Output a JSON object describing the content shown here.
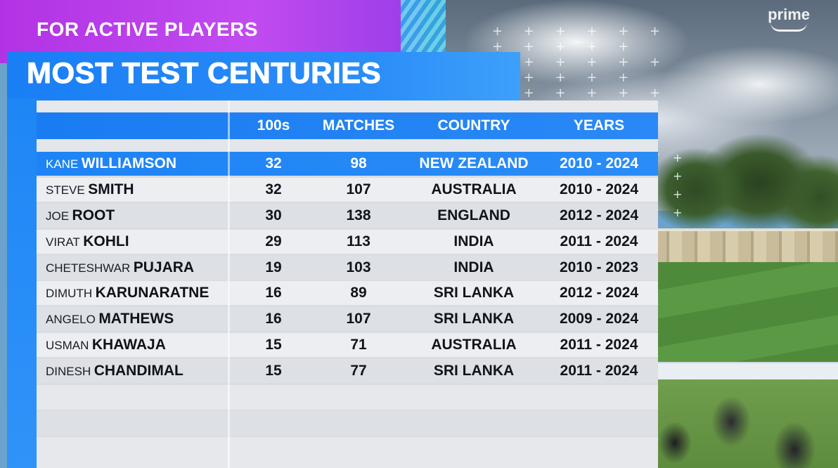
{
  "broadcaster": "prime",
  "pretitle": "FOR ACTIVE PLAYERS",
  "title": "MOST TEST CENTURIES",
  "headers": {
    "hundreds": "100s",
    "matches": "MATCHES",
    "country": "COUNTRY",
    "years": "YEARS"
  },
  "rows": [
    {
      "first": "KANE",
      "last": "WILLIAMSON",
      "hundreds": "32",
      "matches": "98",
      "country": "NEW ZEALAND",
      "years": "2010 - 2024"
    },
    {
      "first": "STEVE",
      "last": "SMITH",
      "hundreds": "32",
      "matches": "107",
      "country": "AUSTRALIA",
      "years": "2010 - 2024"
    },
    {
      "first": "JOE",
      "last": "ROOT",
      "hundreds": "30",
      "matches": "138",
      "country": "ENGLAND",
      "years": "2012 - 2024"
    },
    {
      "first": "VIRAT",
      "last": "KOHLI",
      "hundreds": "29",
      "matches": "113",
      "country": "INDIA",
      "years": "2011 - 2024"
    },
    {
      "first": "CHETESHWAR",
      "last": "PUJARA",
      "hundreds": "19",
      "matches": "103",
      "country": "INDIA",
      "years": "2010 - 2023"
    },
    {
      "first": "DIMUTH",
      "last": "KARUNARATNE",
      "hundreds": "16",
      "matches": "89",
      "country": "SRI LANKA",
      "years": "2012 - 2024"
    },
    {
      "first": "ANGELO",
      "last": "MATHEWS",
      "hundreds": "16",
      "matches": "107",
      "country": "SRI LANKA",
      "years": "2009 - 2024"
    },
    {
      "first": "USMAN",
      "last": "KHAWAJA",
      "hundreds": "15",
      "matches": "71",
      "country": "AUSTRALIA",
      "years": "2011 - 2024"
    },
    {
      "first": "DINESH",
      "last": "CHANDIMAL",
      "hundreds": "15",
      "matches": "77",
      "country": "SRI LANKA",
      "years": "2011 - 2024"
    }
  ],
  "colors": {
    "accent_blue": "#1a7ef5",
    "magenta": "#c14bf0",
    "panel": "#d9dde3"
  }
}
